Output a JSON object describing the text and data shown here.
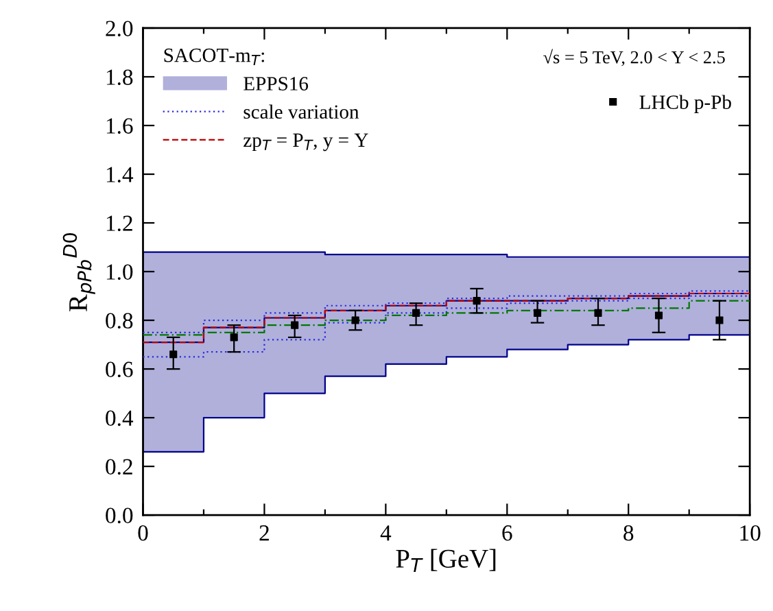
{
  "chart_data": {
    "type": "step",
    "legend_title": "SACOT-m$_{T}$:",
    "xlabel": "P$_{T}$ [GeV]",
    "ylabel": "R$_{pPb}$$^{D0}$",
    "annotations": [
      "√s = 5 TeV, 2.0 < Y < 2.5"
    ],
    "xlim": [
      0,
      10
    ],
    "xticks": [
      0,
      2,
      4,
      6,
      8,
      10
    ],
    "ylim": [
      0,
      2
    ],
    "yticks": [
      {
        "value": 0,
        "label": "0.0"
      },
      0.2,
      0.4,
      0.6,
      0.8,
      {
        "value": 1,
        "label": "1.0"
      },
      1.2,
      1.4,
      1.6,
      1.8,
      {
        "value": 2,
        "label": "2.0"
      }
    ],
    "grid": false,
    "legend": "top left",
    "x": [
      0,
      1,
      2,
      3,
      4,
      5,
      6,
      7,
      8,
      9,
      10
    ],
    "series": [
      {
        "name": "EPPS16",
        "color": "#00008b",
        "values": [
          0.71,
          0.77,
          0.81,
          0.84,
          0.86,
          0.88,
          0.88,
          0.89,
          0.9,
          0.91,
          0.91
        ],
        "lower": [
          0.26,
          0.4,
          0.5,
          0.57,
          0.62,
          0.65,
          0.68,
          0.7,
          0.72,
          0.74,
          0.74
        ],
        "upper": [
          1.08,
          1.08,
          1.08,
          1.07,
          1.07,
          1.07,
          1.06,
          1.06,
          1.06,
          1.06,
          1.06
        ]
      },
      {
        "name": "scale variation",
        "color": "#2a2ae0",
        "line_style": "dotted",
        "values": [
          0.75,
          0.8,
          0.83,
          0.86,
          0.87,
          0.89,
          0.9,
          0.9,
          0.91,
          0.92,
          0.92
        ]
      },
      {
        "color": "#2a2ae0",
        "line_style": "dotted",
        "values": [
          0.65,
          0.67,
          0.72,
          0.79,
          0.83,
          0.85,
          0.87,
          0.88,
          0.89,
          0.9,
          0.9
        ]
      },
      {
        "name": "zp$_{T}$ = P$_{T}$, y = Y",
        "color": "#c00000",
        "line_style": "dashed",
        "values": [
          0.71,
          0.77,
          0.81,
          0.84,
          0.86,
          0.88,
          0.88,
          0.89,
          0.9,
          0.91,
          0.91
        ]
      },
      {
        "color": "#007700",
        "line_style": "dashdot",
        "values": [
          0.74,
          0.75,
          0.78,
          0.8,
          0.82,
          0.83,
          0.84,
          0.84,
          0.85,
          0.88,
          0.88
        ]
      },
      {
        "name": "LHCb p-Pb",
        "type": "scatter",
        "marker": "square",
        "color": "#000000",
        "x": [
          0.5,
          1.5,
          2.5,
          3.5,
          4.5,
          5.5,
          6.5,
          7.5,
          8.5,
          9.5
        ],
        "values": [
          0.66,
          0.73,
          0.78,
          0.8,
          0.83,
          0.88,
          0.83,
          0.83,
          0.82,
          0.8
        ],
        "errors": [
          [
            0.6,
            0.73
          ],
          [
            0.67,
            0.78
          ],
          [
            0.73,
            0.82
          ],
          [
            0.76,
            0.84
          ],
          [
            0.78,
            0.87
          ],
          [
            0.83,
            0.93
          ],
          [
            0.79,
            0.88
          ],
          [
            0.78,
            0.89
          ],
          [
            0.75,
            0.89
          ],
          [
            0.72,
            0.88
          ]
        ]
      }
    ]
  }
}
